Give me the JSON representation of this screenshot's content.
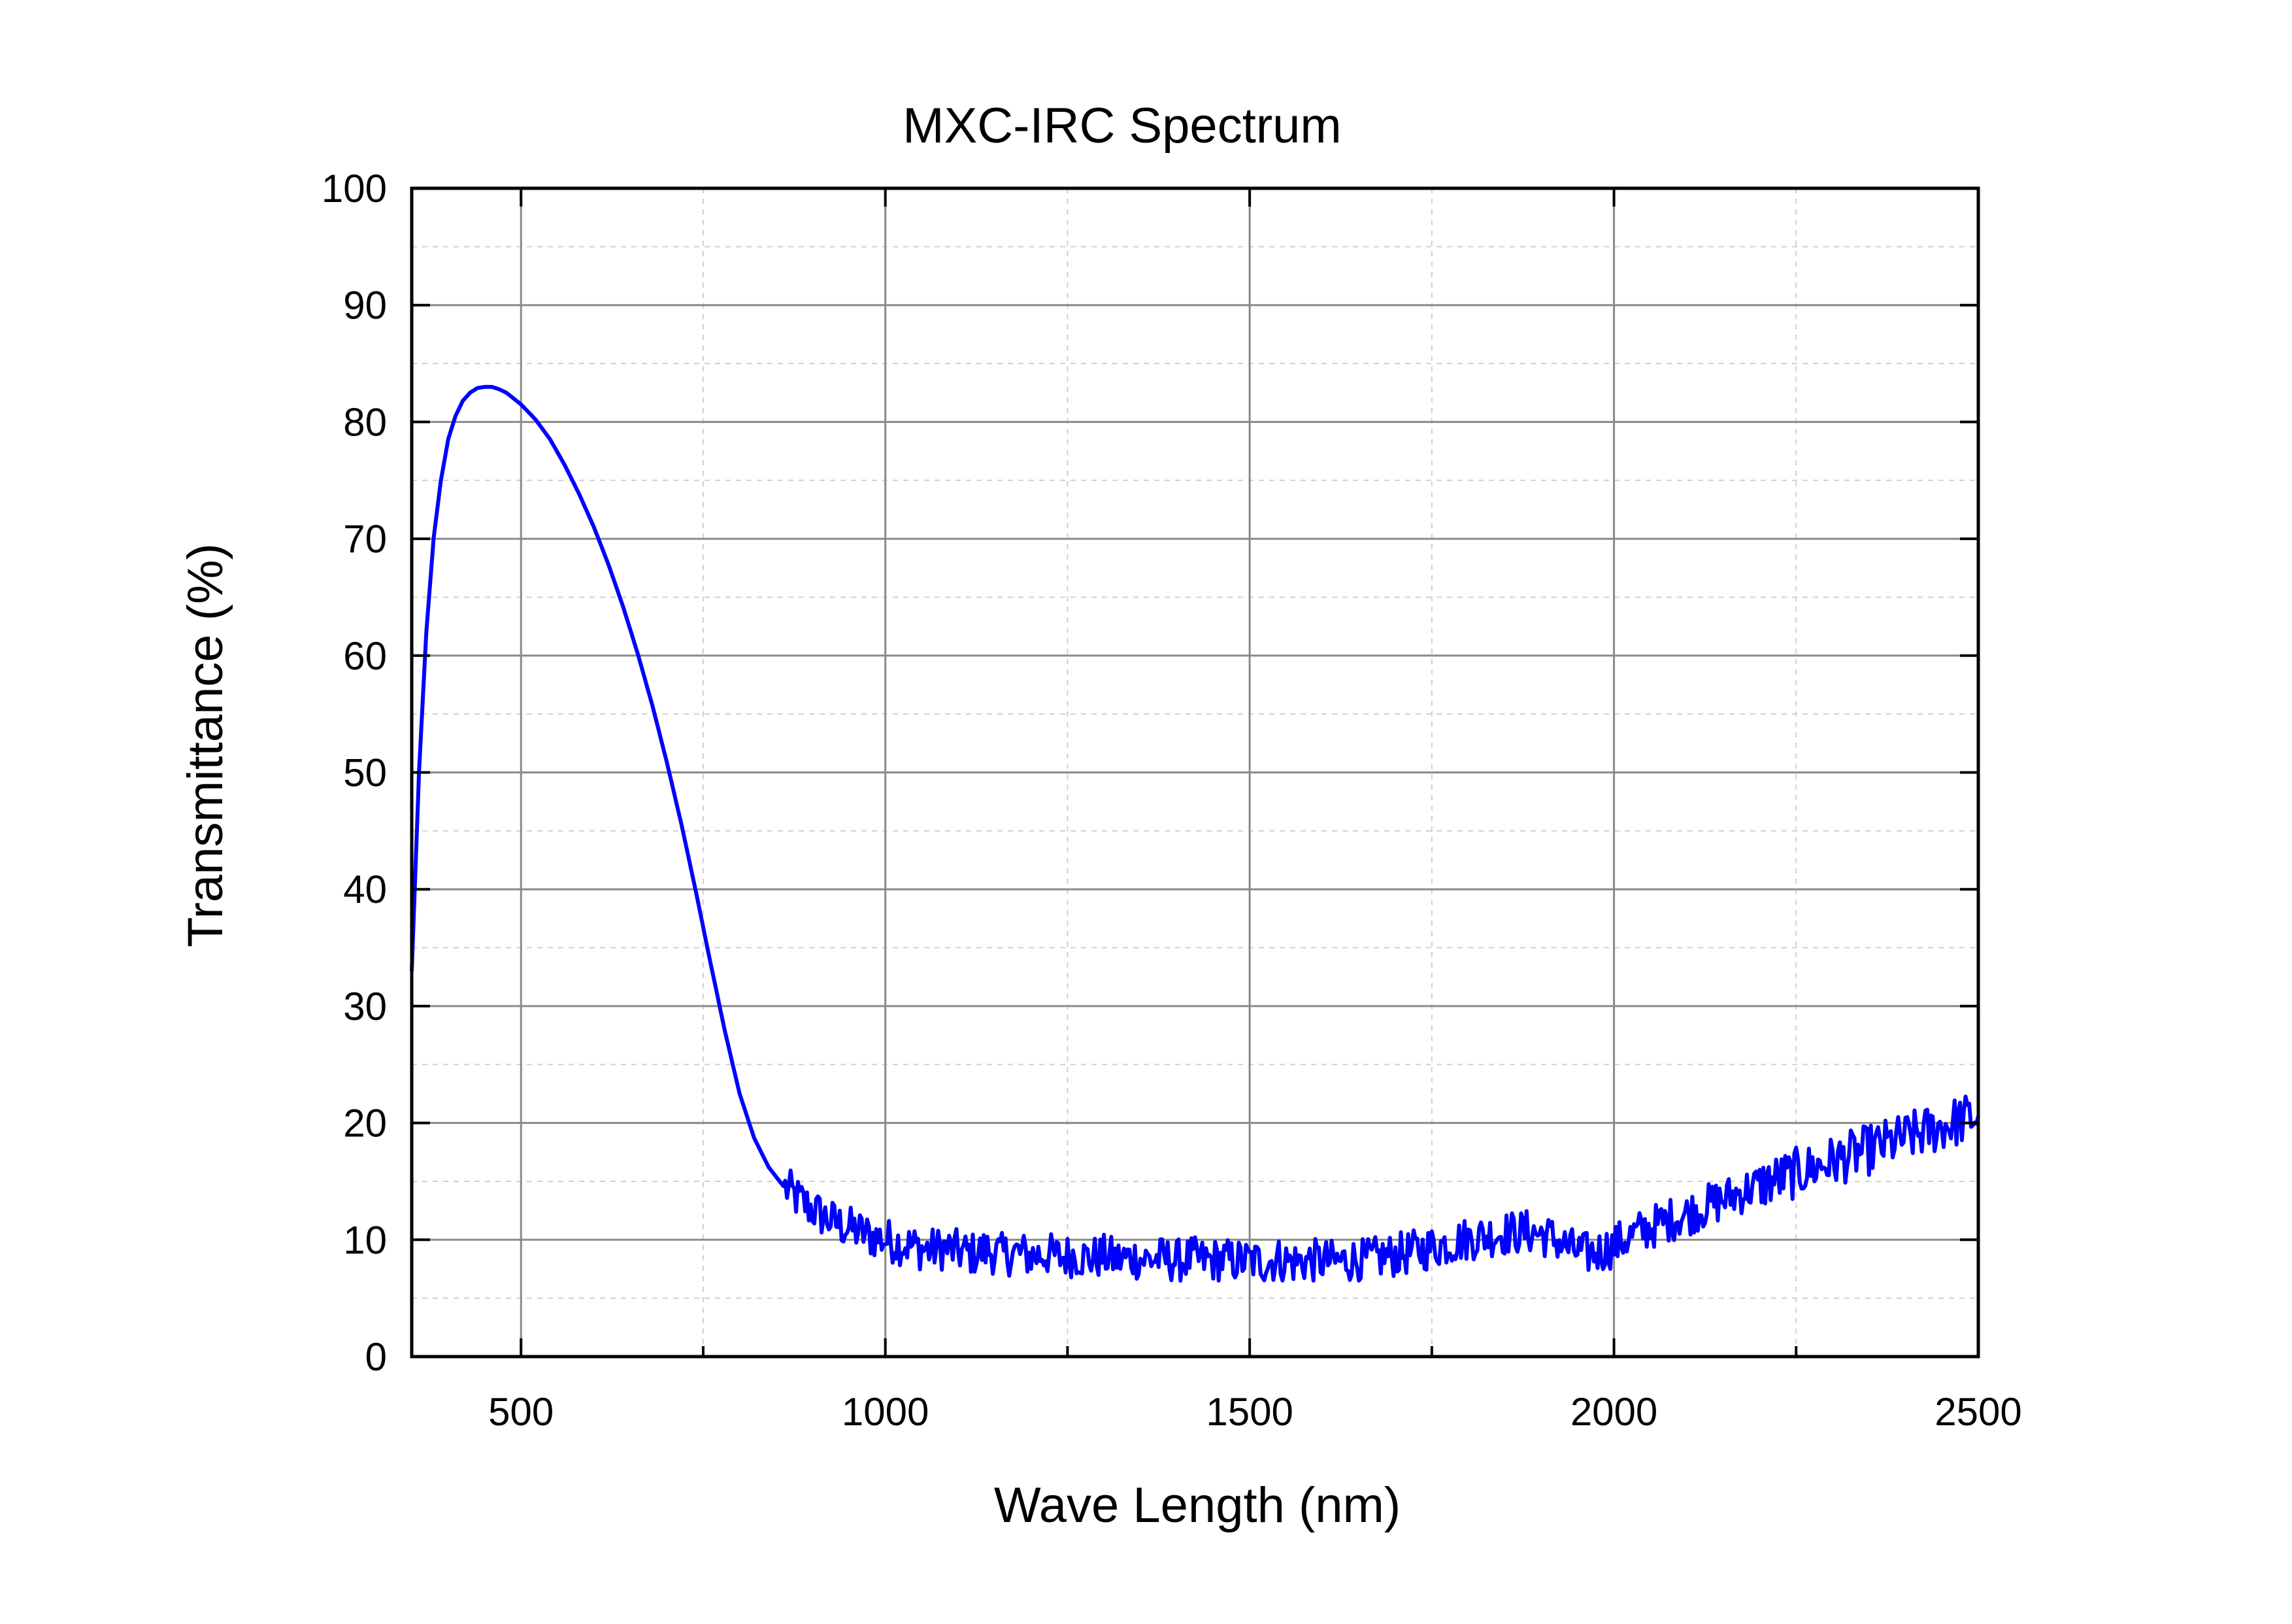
{
  "chart_data": {
    "type": "line",
    "title": "MXC-IRC Spectrum",
    "xlabel": "Wave Length (nm)",
    "ylabel": "Transmittance (%)",
    "xlim": [
      350,
      2500
    ],
    "ylim": [
      0,
      100
    ],
    "x_ticks": [
      500,
      1000,
      1500,
      2000,
      2500
    ],
    "y_ticks": [
      0,
      10,
      20,
      30,
      40,
      50,
      60,
      70,
      80,
      90,
      100
    ],
    "grid": true,
    "line_color": "#0000ff",
    "series": [
      {
        "x": [
          350,
          360,
          370,
          380,
          390,
          400,
          410,
          420,
          430,
          440,
          450,
          460,
          470,
          480,
          490,
          500,
          520,
          540,
          560,
          580,
          600,
          620,
          640,
          660,
          680,
          700,
          720,
          740,
          760,
          780,
          800,
          820,
          840,
          860,
          880,
          900,
          920,
          940,
          960,
          980,
          1000,
          1020,
          1040,
          1060,
          1080,
          1100,
          1120,
          1140,
          1160,
          1180,
          1200,
          1220,
          1240,
          1260,
          1280,
          1300,
          1320,
          1340,
          1360,
          1380,
          1400,
          1420,
          1440,
          1460,
          1480,
          1500,
          1520,
          1540,
          1560,
          1580,
          1600,
          1620,
          1640,
          1660,
          1680,
          1700,
          1720,
          1740,
          1760,
          1780,
          1800,
          1820,
          1840,
          1860,
          1880,
          1900,
          1920,
          1940,
          1960,
          1980,
          2000,
          2020,
          2040,
          2060,
          2080,
          2100,
          2120,
          2140,
          2160,
          2180,
          2200,
          2220,
          2240,
          2260,
          2280,
          2300,
          2320,
          2340,
          2360,
          2380,
          2400,
          2420,
          2440,
          2460,
          2480,
          2500
        ],
        "y": [
          33,
          50,
          62,
          70,
          75,
          78.5,
          80.5,
          81.8,
          82.5,
          82.9,
          83,
          83,
          82.8,
          82.5,
          82,
          81.5,
          80.2,
          78.5,
          76.3,
          73.8,
          71,
          67.8,
          64.2,
          60.2,
          55.8,
          50.9,
          45.6,
          39.8,
          33.7,
          27.8,
          22.5,
          18.7,
          16.2,
          14.6,
          13.5,
          12.6,
          11.8,
          11.2,
          10.8,
          10.3,
          10,
          9.7,
          9.4,
          9.1,
          9.3,
          9,
          8.8,
          9.1,
          8.7,
          8.9,
          8.6,
          8.8,
          8.5,
          8.7,
          8.4,
          8.6,
          8.3,
          8.5,
          8.3,
          8.4,
          8.2,
          8.4,
          8.2,
          8.3,
          8.2,
          8.2,
          8.1,
          8.3,
          8.1,
          8.2,
          8.2,
          8.1,
          8.3,
          8.2,
          8.5,
          8.7,
          8.9,
          9.2,
          9.5,
          9.8,
          10.1,
          10.3,
          10.5,
          10.6,
          10.7,
          10.5,
          10.0,
          9.2,
          8.8,
          9.0,
          9.5,
          10.2,
          10.8,
          11.3,
          11.8,
          12.2,
          12.7,
          13.2,
          13.7,
          14.2,
          14.7,
          15.1,
          15.5,
          15.9,
          16.3,
          16.7,
          17.1,
          17.5,
          17.9,
          18.3,
          18.7,
          19.1,
          19.5,
          19.9,
          20.3,
          20.6
        ]
      }
    ]
  }
}
